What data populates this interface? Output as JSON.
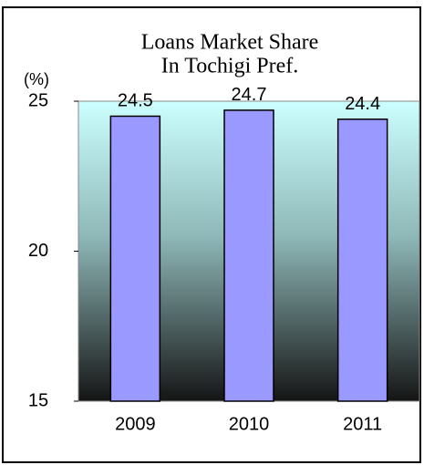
{
  "chart_data": {
    "type": "bar",
    "title": [
      "Loans Market Share",
      "In Tochigi Pref."
    ],
    "y_label": "(%)",
    "categories": [
      "2009",
      "2010",
      "2011"
    ],
    "values": [
      24.5,
      24.7,
      24.4
    ],
    "color": "#9999ff",
    "ylim": [
      15,
      25
    ],
    "yticks": [
      15,
      20,
      25
    ],
    "grid": false
  }
}
